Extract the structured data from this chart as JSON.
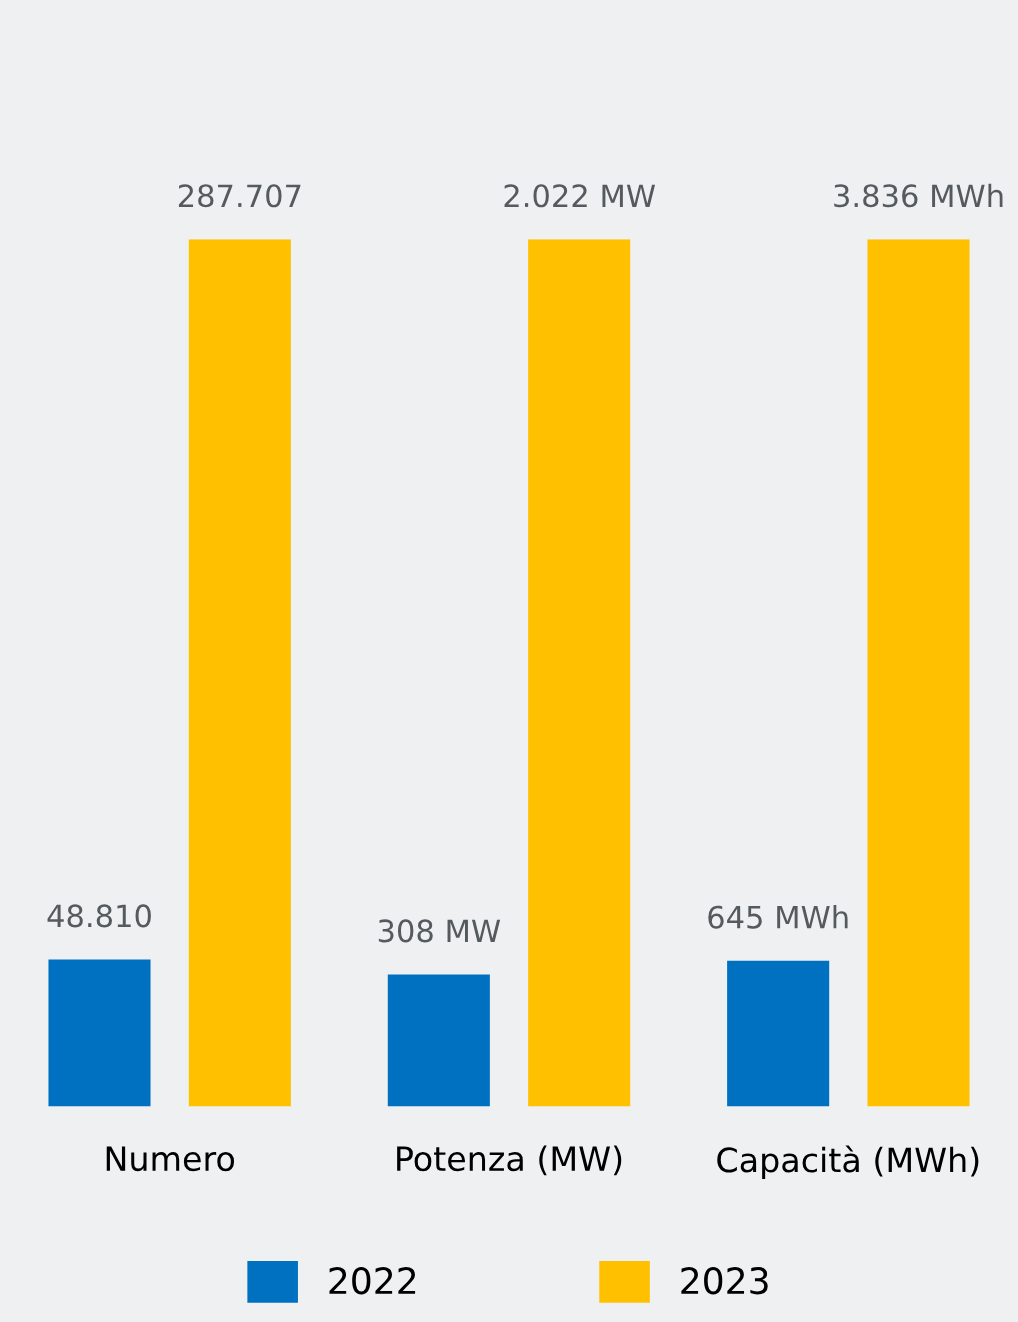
{
  "chart_data": [
    {
      "type": "bar",
      "categories": [
        "Numero"
      ],
      "legend": "bottom",
      "grid": false,
      "series": [
        {
          "name": "2022",
          "color": "#0070c0",
          "values": [
            48810
          ],
          "value_labels": [
            "48.810"
          ]
        },
        {
          "name": "2023",
          "color": "#ffc000",
          "values": [
            287707
          ],
          "value_labels": [
            "287.707"
          ]
        }
      ]
    },
    {
      "type": "bar",
      "categories": [
        "Potenza (MW)"
      ],
      "grid": false,
      "series": [
        {
          "color": "#0070c0",
          "values": [
            308
          ],
          "value_labels": [
            "308 MW"
          ]
        },
        {
          "color": "#ffc000",
          "values": [
            2022
          ],
          "value_labels": [
            "2.022 MW"
          ]
        }
      ]
    },
    {
      "type": "bar",
      "categories": [
        "Capacità (MWh)"
      ],
      "grid": false,
      "series": [
        {
          "color": "#0070c0",
          "values": [
            645
          ],
          "value_labels": [
            "645 MWh"
          ]
        },
        {
          "color": "#ffc000",
          "values": [
            3836
          ],
          "value_labels": [
            "3.836 MWh"
          ]
        }
      ]
    }
  ]
}
